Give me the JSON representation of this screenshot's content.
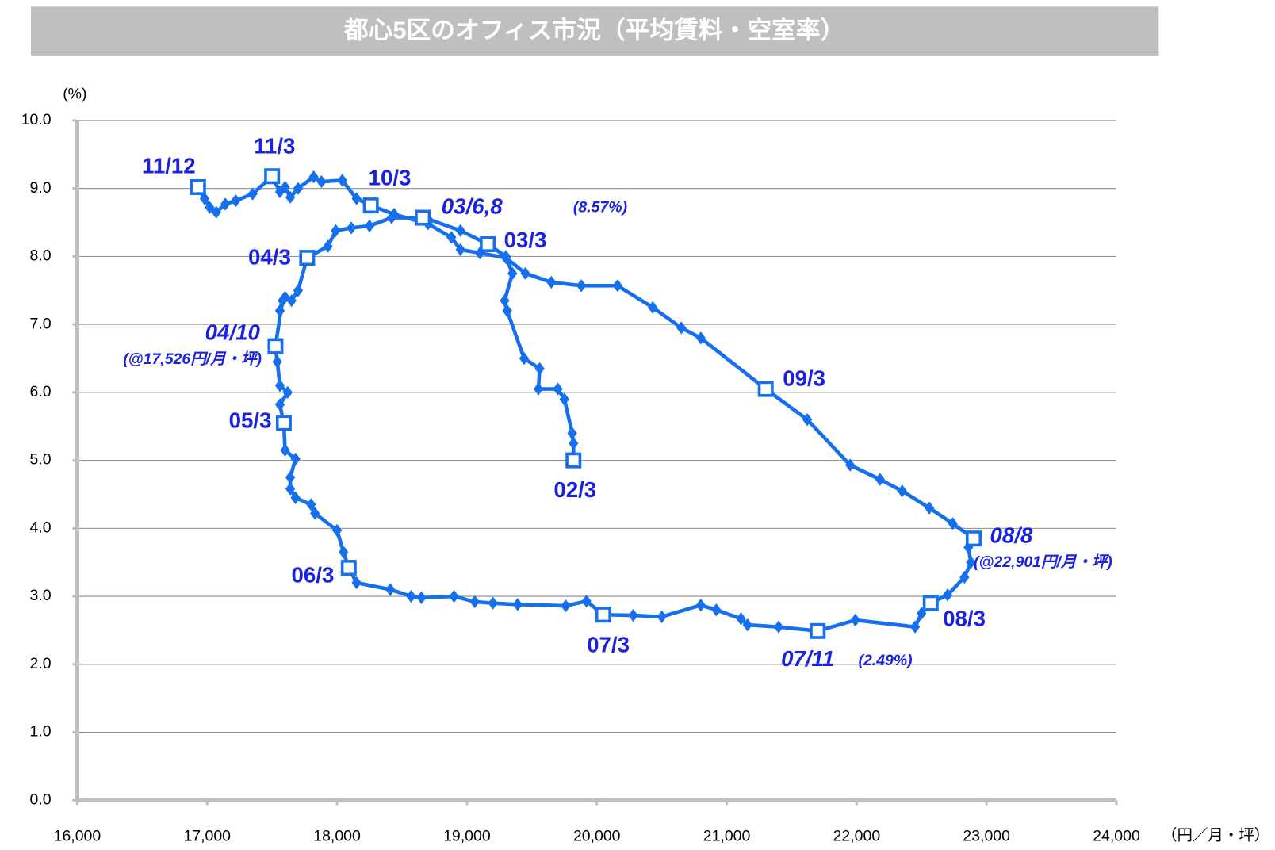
{
  "chart_data": {
    "type": "line",
    "title": "都心5区のオフィス市況（平均賃料・空室率）",
    "y_unit": "(%)",
    "x_unit": "（円／月・坪）",
    "color": "#1670ee",
    "grid": true,
    "xlim": [
      16000,
      24000
    ],
    "xticks": [
      {
        "value": 16000,
        "label": "16,000"
      },
      {
        "value": 17000,
        "label": "17,000"
      },
      {
        "value": 18000,
        "label": "18,000"
      },
      {
        "value": 19000,
        "label": "19,000"
      },
      {
        "value": 20000,
        "label": "20,000"
      },
      {
        "value": 21000,
        "label": "21,000"
      },
      {
        "value": 22000,
        "label": "22,000"
      },
      {
        "value": 23000,
        "label": "23,000"
      },
      {
        "value": 24000,
        "label": "24,000"
      }
    ],
    "ylim": [
      0,
      10
    ],
    "yticks": [
      {
        "value": 0,
        "label": "0.0"
      },
      {
        "value": 1,
        "label": "1.0"
      },
      {
        "value": 2,
        "label": "2.0"
      },
      {
        "value": 3,
        "label": "3.0"
      },
      {
        "value": 4,
        "label": "4.0"
      },
      {
        "value": 5,
        "label": "5.0"
      },
      {
        "value": 6,
        "label": "6.0"
      },
      {
        "value": 7,
        "label": "7.0"
      },
      {
        "value": 8,
        "label": "8.0"
      },
      {
        "value": 9,
        "label": "9.0"
      },
      {
        "value": 10,
        "label": "10.0"
      }
    ],
    "x": [
      19820,
      19820,
      19810,
      19750,
      19700,
      19550,
      19560,
      19440,
      19310,
      19290,
      19350,
      19300,
      19160,
      18950,
      18700,
      18660,
      18420,
      18250,
      18110,
      17990,
      17930,
      17770,
      17700,
      17650,
      17600,
      17560,
      17580,
      17526,
      17540,
      17560,
      17620,
      17560,
      17590,
      17600,
      17680,
      17640,
      17640,
      17680,
      17800,
      17830,
      18000,
      18050,
      18090,
      18150,
      18410,
      18570,
      18650,
      18900,
      19060,
      19200,
      19390,
      19760,
      19920,
      20050,
      20280,
      20500,
      20800,
      20920,
      21110,
      21160,
      21400,
      21700,
      21990,
      22450,
      22500,
      22570,
      22700,
      22830,
      22880,
      22860,
      22901,
      22740,
      22560,
      22350,
      22180,
      21950,
      21620,
      21300,
      20800,
      20650,
      20430,
      20160,
      19880,
      19650,
      19450,
      19300,
      19100,
      18950,
      18880,
      18700,
      18440,
      18260,
      18150,
      18040,
      17880,
      17820,
      17700,
      17640,
      17600,
      17560,
      17500,
      17350,
      17220,
      17140,
      17070,
      17020,
      16980,
      16930
    ],
    "values": [
      5.0,
      5.25,
      5.4,
      5.9,
      6.05,
      6.05,
      6.35,
      6.5,
      7.2,
      7.35,
      7.75,
      8.0,
      8.18,
      8.38,
      8.55,
      8.57,
      8.57,
      8.45,
      8.42,
      8.38,
      8.15,
      7.98,
      7.5,
      7.35,
      7.4,
      7.2,
      7.35,
      6.68,
      6.45,
      6.1,
      6.0,
      5.82,
      5.55,
      5.15,
      5.02,
      4.75,
      4.58,
      4.45,
      4.35,
      4.22,
      3.97,
      3.65,
      3.42,
      3.2,
      3.1,
      3.0,
      2.98,
      3.0,
      2.92,
      2.9,
      2.88,
      2.86,
      2.93,
      2.73,
      2.72,
      2.7,
      2.87,
      2.8,
      2.67,
      2.58,
      2.55,
      2.49,
      2.65,
      2.55,
      2.75,
      2.9,
      3.02,
      3.28,
      3.5,
      3.72,
      3.85,
      4.07,
      4.3,
      4.55,
      4.72,
      4.93,
      5.6,
      6.05,
      6.8,
      6.95,
      7.25,
      7.57,
      7.57,
      7.62,
      7.75,
      7.98,
      8.05,
      8.1,
      8.28,
      8.48,
      8.62,
      8.75,
      8.85,
      9.12,
      9.1,
      9.17,
      9.0,
      8.87,
      9.02,
      8.95,
      9.18,
      8.92,
      8.82,
      8.77,
      8.65,
      8.72,
      8.85,
      9.02
    ],
    "annotations": [
      {
        "text": "02/3",
        "x": 19820,
        "y": 5.0
      },
      {
        "text": "03/3",
        "x": 19160,
        "y": 8.18
      },
      {
        "text": "03/6,8",
        "note": "(8.57%)",
        "x": 18660,
        "y": 8.57
      },
      {
        "text": "04/3",
        "x": 17770,
        "y": 7.98
      },
      {
        "text": "04/10",
        "note": "(@17,526円/月・坪)",
        "x": 17526,
        "y": 6.68
      },
      {
        "text": "05/3",
        "x": 17590,
        "y": 5.55
      },
      {
        "text": "06/3",
        "x": 18090,
        "y": 3.42
      },
      {
        "text": "07/3",
        "x": 20050,
        "y": 2.73
      },
      {
        "text": "07/11",
        "note": "(2.49%)",
        "x": 21700,
        "y": 2.49
      },
      {
        "text": "08/3",
        "x": 22570,
        "y": 2.9
      },
      {
        "text": "08/8",
        "note": "(@22,901円/月・坪)",
        "x": 22901,
        "y": 3.85
      },
      {
        "text": "09/3",
        "x": 21300,
        "y": 6.05
      },
      {
        "text": "10/3",
        "x": 18260,
        "y": 8.75
      },
      {
        "text": "11/3",
        "x": 17500,
        "y": 9.18
      },
      {
        "text": "11/12",
        "x": 16930,
        "y": 9.02
      }
    ]
  }
}
